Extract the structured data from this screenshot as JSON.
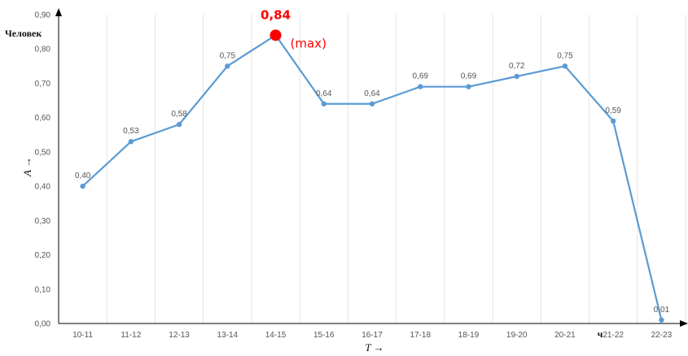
{
  "chart_data": {
    "type": "line",
    "categories": [
      "10-11",
      "11-12",
      "12-13",
      "13-14",
      "14-15",
      "15-16",
      "16-17",
      "17-18",
      "18-19",
      "19-20",
      "20-21",
      "21-22",
      "22-23"
    ],
    "values": [
      0.4,
      0.53,
      0.58,
      0.75,
      0.84,
      0.64,
      0.64,
      0.69,
      0.69,
      0.72,
      0.75,
      0.59,
      0.01
    ],
    "value_labels": [
      "0,40",
      "0,53",
      "0,58",
      "0,75",
      "0,84",
      "0,64",
      "0,64",
      "0,69",
      "0,69",
      "0,72",
      "0,75",
      "0,59",
      "0,01"
    ],
    "y_ticks": [
      "0,00",
      "0,10",
      "0,20",
      "0,30",
      "0,40",
      "0,50",
      "0,60",
      "0,70",
      "0,80",
      "0,90"
    ],
    "ylim": [
      0,
      0.9
    ],
    "y_unit": "Человек",
    "ylabel": "A →",
    "xlabel": "T →",
    "x_unit": "ч",
    "max_annotation": "(max)",
    "grid": "vertical",
    "line_color": "#5b9bd5",
    "max_marker_color": "#ff0000"
  }
}
